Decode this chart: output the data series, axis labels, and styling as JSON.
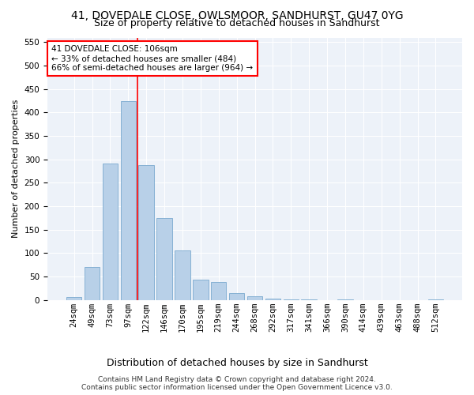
{
  "title1": "41, DOVEDALE CLOSE, OWLSMOOR, SANDHURST, GU47 0YG",
  "title2": "Size of property relative to detached houses in Sandhurst",
  "xlabel": "Distribution of detached houses by size in Sandhurst",
  "ylabel": "Number of detached properties",
  "categories": [
    "24sqm",
    "49sqm",
    "73sqm",
    "97sqm",
    "122sqm",
    "146sqm",
    "170sqm",
    "195sqm",
    "219sqm",
    "244sqm",
    "268sqm",
    "292sqm",
    "317sqm",
    "341sqm",
    "366sqm",
    "390sqm",
    "414sqm",
    "439sqm",
    "463sqm",
    "488sqm",
    "512sqm"
  ],
  "values": [
    7,
    70,
    291,
    425,
    287,
    175,
    105,
    43,
    38,
    15,
    8,
    3,
    1,
    1,
    0,
    2,
    0,
    0,
    0,
    0,
    2
  ],
  "bar_color": "#b8d0e8",
  "bar_edge_color": "#7aaacf",
  "vline_color": "red",
  "vline_index": 3.5,
  "annotation_text": "41 DOVEDALE CLOSE: 106sqm\n← 33% of detached houses are smaller (484)\n66% of semi-detached houses are larger (964) →",
  "annotation_box_color": "white",
  "annotation_box_edge": "red",
  "footnote": "Contains HM Land Registry data © Crown copyright and database right 2024.\nContains public sector information licensed under the Open Government Licence v3.0.",
  "ylim": [
    0,
    560
  ],
  "yticks": [
    0,
    50,
    100,
    150,
    200,
    250,
    300,
    350,
    400,
    450,
    500,
    550
  ],
  "title1_fontsize": 10,
  "title2_fontsize": 9,
  "ylabel_fontsize": 8,
  "xlabel_fontsize": 9,
  "tick_fontsize": 7.5,
  "annot_fontsize": 7.5,
  "footnote_fontsize": 6.5,
  "background_color": "#edf2f9"
}
